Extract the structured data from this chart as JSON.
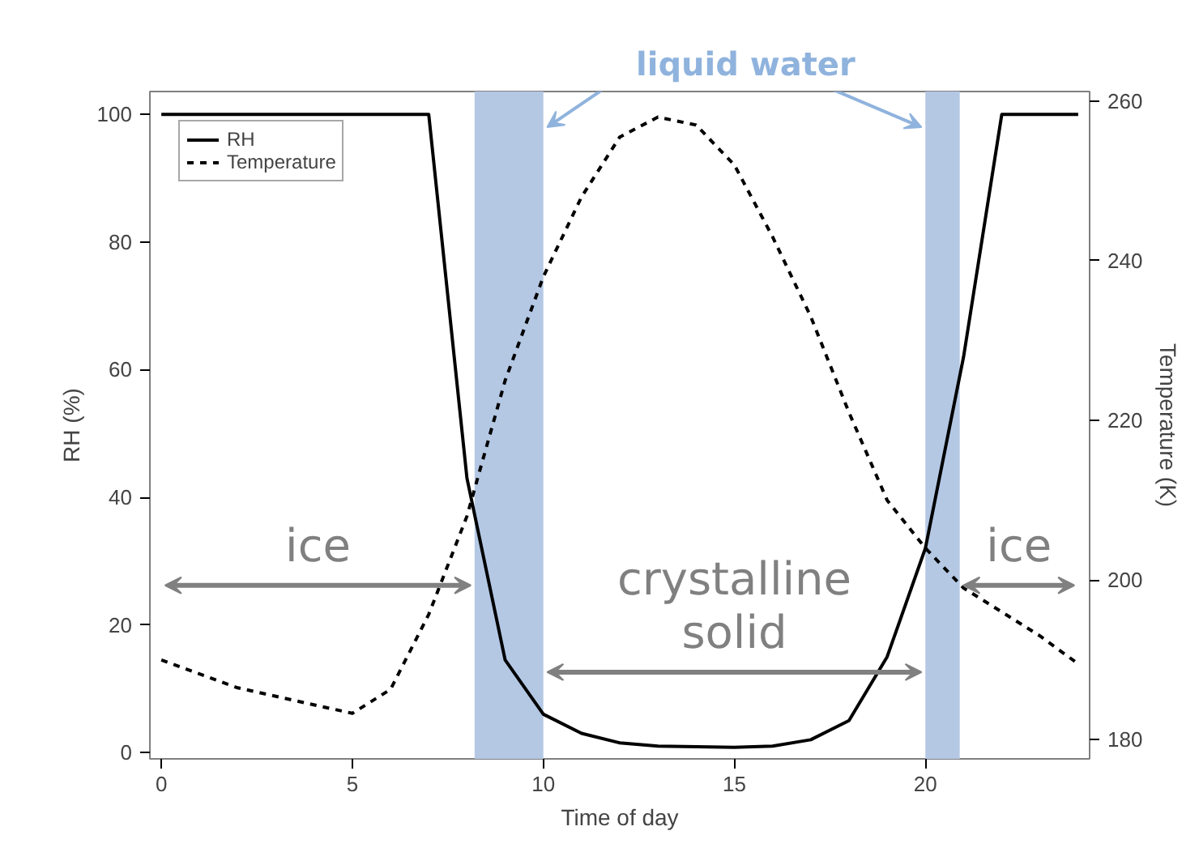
{
  "chart_data": {
    "type": "line",
    "xlabel": "Time of day",
    "ylabel": "RH (%)",
    "y2label": "Temperature (K)",
    "xlim": [
      -0.3,
      24.3
    ],
    "xticks": [
      0,
      5,
      10,
      15,
      20
    ],
    "ylim": [
      -1,
      103.6
    ],
    "yticks": [
      0,
      20,
      40,
      60,
      80,
      100
    ],
    "y2lim": [
      177.6,
      261.2
    ],
    "y2ticks": [
      180,
      200,
      220,
      240,
      260
    ],
    "series": [
      {
        "name": "RH",
        "color": "#000000",
        "line_style": "solid",
        "x": [
          0,
          7,
          8,
          9,
          10,
          11,
          12,
          13,
          15,
          16,
          17,
          18,
          19,
          20,
          21,
          22,
          24
        ],
        "values": [
          100,
          100,
          43,
          14.5,
          6,
          3,
          1.5,
          1,
          0.8,
          1,
          2,
          5,
          15,
          32,
          62,
          100,
          100
        ]
      },
      {
        "name": "Temperature",
        "color": "#000000",
        "line_style": "dashed",
        "axis": "y2",
        "x": [
          0,
          2,
          5,
          6,
          7,
          8,
          9,
          10,
          11,
          12,
          13,
          14,
          15,
          16,
          17,
          18,
          19,
          20,
          21,
          22,
          23,
          24
        ],
        "values": [
          190,
          186.5,
          183.3,
          186.3,
          195.7,
          208,
          225,
          238,
          248,
          255.5,
          258,
          257,
          252,
          243,
          233,
          221,
          210,
          204,
          199,
          196,
          193,
          189.5
        ]
      }
    ],
    "bands": [
      {
        "axis": "x",
        "from": 8.2,
        "to": 10,
        "color": "#b4c8e4"
      },
      {
        "axis": "x",
        "from": 20,
        "to": 20.9,
        "color": "#b4c8e4"
      }
    ],
    "annotations": [
      {
        "text": "liquid water",
        "x": 10,
        "y": 98
      },
      "ice",
      "crystalline\nsolid",
      "ice"
    ],
    "legend": "top left",
    "grid": false
  }
}
